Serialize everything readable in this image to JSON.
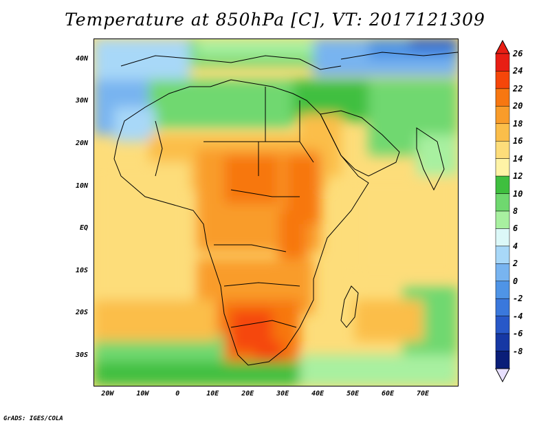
{
  "title": "Temperature at 850hPa [C], VT: 2017121309",
  "footer": "GrADS: IGES/COLA",
  "map": {
    "region": "Africa and Arabian Peninsula",
    "lon_range": [
      -24,
      80
    ],
    "lat_range": [
      -37,
      45
    ],
    "variable": "Temperature at 850hPa",
    "units": "C",
    "valid_time": "2017121309"
  },
  "lat_labels": [
    {
      "text": "40N",
      "lat": 40
    },
    {
      "text": "30N",
      "lat": 30
    },
    {
      "text": "20N",
      "lat": 20
    },
    {
      "text": "10N",
      "lat": 10
    },
    {
      "text": "EQ",
      "lat": 0
    },
    {
      "text": "10S",
      "lat": -10
    },
    {
      "text": "20S",
      "lat": -20
    },
    {
      "text": "30S",
      "lat": -30
    }
  ],
  "lon_labels": [
    {
      "text": "20W",
      "lon": -20
    },
    {
      "text": "10W",
      "lon": -10
    },
    {
      "text": "0",
      "lon": 0
    },
    {
      "text": "10E",
      "lon": 10
    },
    {
      "text": "20E",
      "lon": 20
    },
    {
      "text": "30E",
      "lon": 30
    },
    {
      "text": "40E",
      "lon": 40
    },
    {
      "text": "50E",
      "lon": 50
    },
    {
      "text": "60E",
      "lon": 60
    },
    {
      "text": "70E",
      "lon": 70
    }
  ],
  "colorbar": {
    "labels": [
      "26",
      "24",
      "22",
      "20",
      "18",
      "16",
      "14",
      "12",
      "10",
      "8",
      "6",
      "4",
      "2",
      "0",
      "-2",
      "-4",
      "-6",
      "-8"
    ],
    "colors_top_to_bottom": [
      "#e81e14",
      "#f5460a",
      "#f77711",
      "#f99c2a",
      "#fbbe4a",
      "#fddd7a",
      "#fef3a6",
      "#3fbf3f",
      "#6fd86f",
      "#a8f0a0",
      "#dcf8f8",
      "#a8d8f8",
      "#78b4f0",
      "#4f94e6",
      "#3a78dc",
      "#2858c8",
      "#1638a4",
      "#0a1e78"
    ],
    "top_arrow_color": "#e81e14",
    "bottom_arrow_color": "#e8e0ff"
  },
  "palette": {
    "ocean_cool": "#6fd86f",
    "warm_land": "#f99c2a",
    "hot_land": "#f5460a",
    "coast_line": "#000000"
  }
}
